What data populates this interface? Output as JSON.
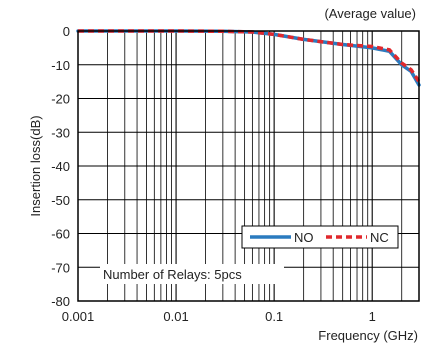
{
  "chart_data": {
    "type": "line",
    "annotation": "(Average value)",
    "xlabel": "Frequency (GHz)",
    "ylabel": "Insertion loss(dB)",
    "x_scale": "log",
    "xlim": [
      0.001,
      3
    ],
    "ylim": [
      -80,
      0
    ],
    "x_ticks": [
      0.001,
      0.01,
      0.1,
      1
    ],
    "x_tick_labels": [
      "0.001",
      "0.01",
      "0.1",
      "1"
    ],
    "y_ticks": [
      0,
      -10,
      -20,
      -30,
      -40,
      -50,
      -60,
      -70,
      -80
    ],
    "y_tick_labels": [
      "0",
      "-10",
      "-20",
      "-30",
      "-40",
      "-50",
      "-60",
      "-70",
      "-80"
    ],
    "grid": true,
    "legend_position": "lower-right",
    "note": "Number of Relays: 5pcs",
    "series": [
      {
        "name": "NO",
        "color": "#2b7bbf",
        "style": "solid",
        "x": [
          0.001,
          0.01,
          0.03,
          0.06,
          0.1,
          0.2,
          0.5,
          1,
          1.5,
          2,
          2.5,
          3
        ],
        "y": [
          0,
          0,
          -0.1,
          -0.3,
          -1,
          -2.5,
          -4,
          -5,
          -6,
          -10,
          -12,
          -16
        ]
      },
      {
        "name": "NC",
        "color": "#e0282d",
        "style": "dashed",
        "x": [
          0.001,
          0.01,
          0.03,
          0.06,
          0.1,
          0.2,
          0.5,
          1,
          1.5,
          2,
          2.5,
          3
        ],
        "y": [
          0,
          0,
          -0.1,
          -0.3,
          -1,
          -2.5,
          -4,
          -4.6,
          -5.6,
          -9.5,
          -11.5,
          -15
        ]
      }
    ]
  }
}
